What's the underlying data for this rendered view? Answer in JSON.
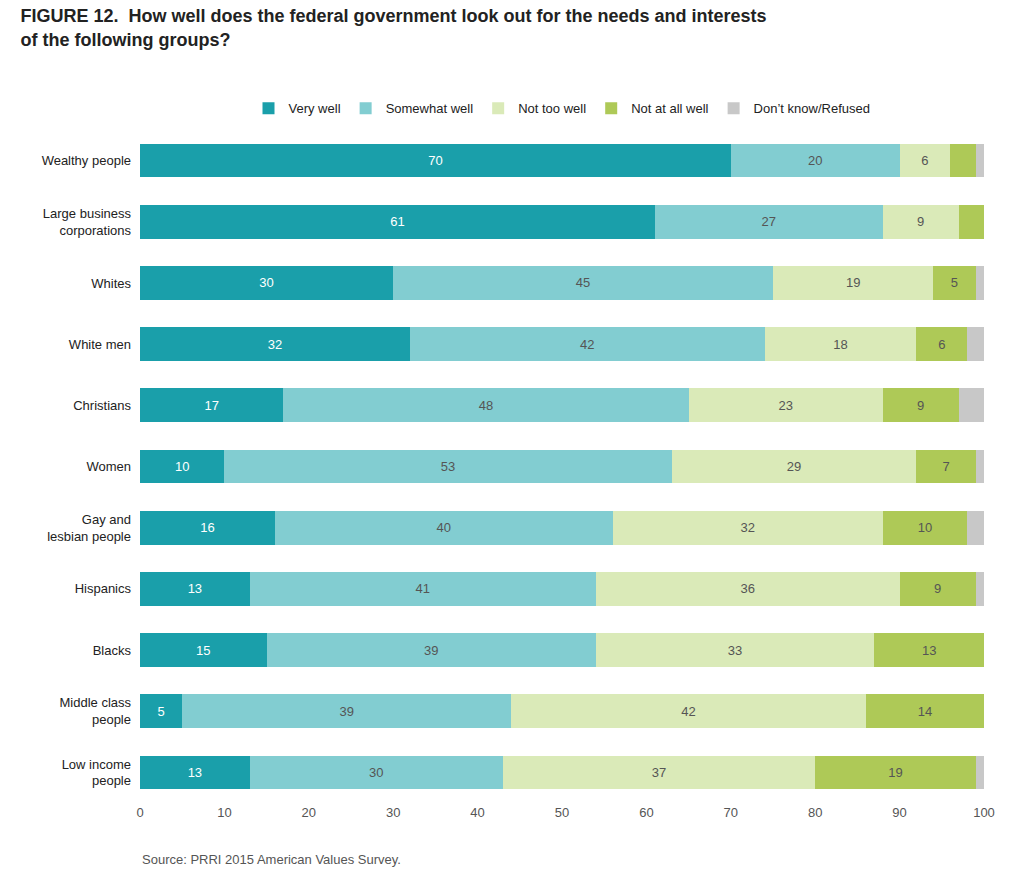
{
  "chart_data": {
    "type": "bar",
    "orientation": "horizontal",
    "stacked": true,
    "title": "FIGURE 12.  How well does the federal government look out for the needs and interests\nof the following groups?",
    "annotations": [
      "Source: PRRI 2015 American Values Survey."
    ],
    "categories": [
      "Wealthy people",
      "Large business\ncorporations",
      "Whites",
      "White men",
      "Christians",
      "Women",
      "Gay and\nlesbian people",
      "Hispanics",
      "Blacks",
      "Middle class\npeople",
      "Low income\npeople"
    ],
    "series": [
      {
        "name": "Very well",
        "color": "#1a9faa",
        "values": [
          70,
          61,
          30,
          32,
          17,
          10,
          16,
          13,
          15,
          5,
          13
        ],
        "value_labels": [
          "70",
          "61",
          "30",
          "32",
          "17",
          "10",
          "16",
          "13",
          "15",
          "5",
          "13"
        ]
      },
      {
        "name": "Somewhat well",
        "color": "#82cdd1",
        "values": [
          20,
          27,
          45,
          42,
          48,
          53,
          40,
          41,
          39,
          39,
          30
        ],
        "value_labels": [
          "20",
          "27",
          "45",
          "42",
          "48",
          "53",
          "40",
          "41",
          "39",
          "39",
          "30"
        ]
      },
      {
        "name": "Not too well",
        "color": "#daeab8",
        "values": [
          6,
          9,
          19,
          18,
          23,
          29,
          32,
          36,
          33,
          42,
          37
        ],
        "value_labels": [
          "6",
          "9",
          "19",
          "18",
          "23",
          "29",
          "32",
          "36",
          "33",
          "42",
          "37"
        ]
      },
      {
        "name": "Not at all well",
        "color": "#aec957",
        "values": [
          3,
          3,
          5,
          6,
          9,
          7,
          10,
          9,
          13,
          14,
          19
        ],
        "value_labels": [
          null,
          null,
          "5",
          "6",
          "9",
          "7",
          "10",
          "9",
          "13",
          "14",
          "19"
        ]
      },
      {
        "name": "Don’t know/Refused",
        "color": "#c8c8c8",
        "values": [
          1,
          0,
          1,
          2,
          3,
          1,
          2,
          1,
          0,
          0,
          1
        ],
        "value_labels": [
          null,
          null,
          null,
          null,
          null,
          null,
          null,
          null,
          null,
          null,
          null
        ]
      }
    ],
    "xlim": [
      0,
      100
    ],
    "xticks": [
      0,
      10,
      20,
      30,
      40,
      50,
      60,
      70,
      80,
      90,
      100
    ],
    "grid": false,
    "legend": "top",
    "data_labels": true
  }
}
